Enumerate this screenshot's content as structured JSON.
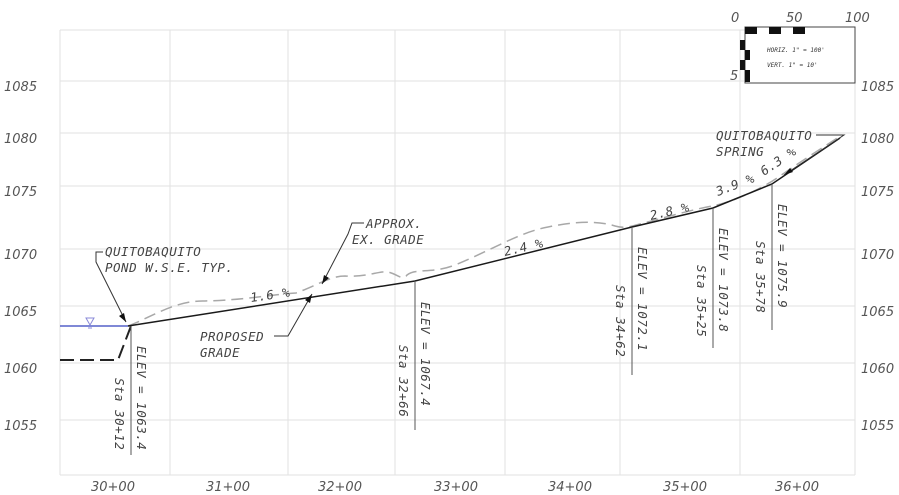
{
  "elevation_labels": [
    "1085",
    "1080",
    "1075",
    "1070",
    "1065",
    "1060",
    "1055"
  ],
  "station_labels": [
    "30+00",
    "31+00",
    "32+00",
    "33+00",
    "34+00",
    "35+00",
    "36+00"
  ],
  "scale_bar": {
    "ticks": [
      "0",
      "50",
      "100"
    ],
    "vertical_tick": "5",
    "horiz": "HORIZ. 1\" = 100'",
    "vert": "VERT. 1\" = 10'"
  },
  "labels": {
    "pond_line1": "QUITOBAQUITO",
    "pond_line2": "POND W.S.E. TYP.",
    "approx_line1": "APPROX.",
    "approx_line2": "EX. GRADE",
    "proposed_line1": "PROPOSED",
    "proposed_line2": "GRADE",
    "spring_line1": "QUITOBAQUITO",
    "spring_line2": "SPRING"
  },
  "slopes": [
    {
      "text": "1.6 %"
    },
    {
      "text": "2.4 %"
    },
    {
      "text": "2.8 %"
    },
    {
      "text": "3.9 %"
    },
    {
      "text": "6.3 %"
    }
  ],
  "points": [
    {
      "elev": "ELEV = 1063.4",
      "sta": "Sta 30+12"
    },
    {
      "elev": "ELEV = 1067.4",
      "sta": "Sta 32+66"
    },
    {
      "elev": "ELEV = 1072.1",
      "sta": "Sta 34+62"
    },
    {
      "elev": "ELEV = 1073.8",
      "sta": "Sta 35+25"
    },
    {
      "elev": "ELEV = 1075.9",
      "sta": "Sta 35+78"
    }
  ],
  "colors": {
    "proposed": "#1a1a1a",
    "existing": "#a8a8a8",
    "water": "#5560c8",
    "grid": "#e2e2e2"
  }
}
